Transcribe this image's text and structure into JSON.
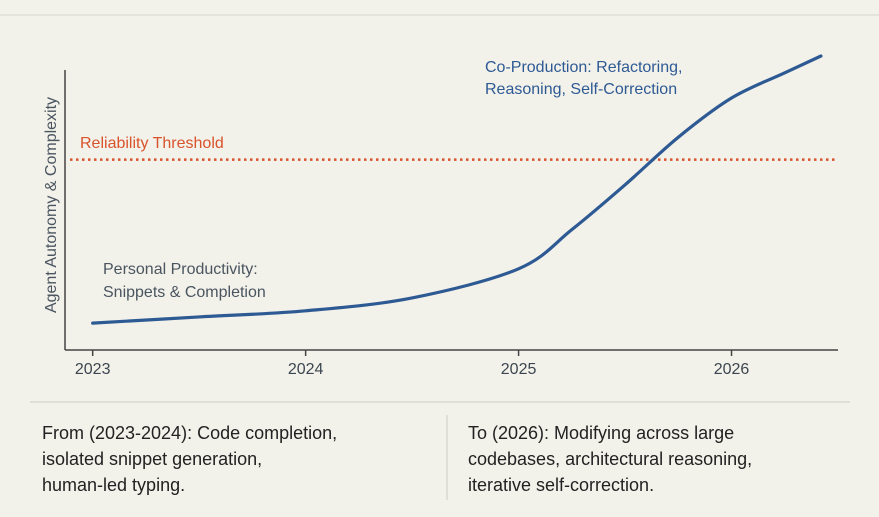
{
  "chart_data": {
    "type": "line",
    "ylabel": "Agent Autonomy & Complexity",
    "x": [
      2023,
      2023.5,
      2024,
      2024.5,
      2025,
      2025.25,
      2025.5,
      2025.75,
      2026,
      2026.25,
      2026.42
    ],
    "series": [
      {
        "color": "#2e5a94",
        "values": [
          9.6,
          11.8,
          14,
          18.6,
          29,
          43,
          59,
          76,
          90,
          99,
          105
        ]
      }
    ],
    "xlim": [
      2022.87,
      2026.5
    ],
    "xticks": [
      2023,
      2024,
      2025,
      2026
    ],
    "ylim": [
      0,
      110
    ],
    "threshold": {
      "label": "Reliability Threshold",
      "value": 68,
      "color": "#d9532b"
    },
    "annotations": {
      "early": [
        "Personal Productivity:",
        "Snippets & Completion"
      ],
      "late": [
        "Co-Production: Refactoring,",
        "Reasoning, Self-Correction"
      ]
    }
  },
  "panels": {
    "from": [
      "From (2023-2024): Code completion,",
      "isolated snippet generation,",
      "human-led typing."
    ],
    "to": [
      "To (2026): Modifying across large",
      "codebases, architectural reasoning,",
      "iterative self-correction."
    ]
  }
}
